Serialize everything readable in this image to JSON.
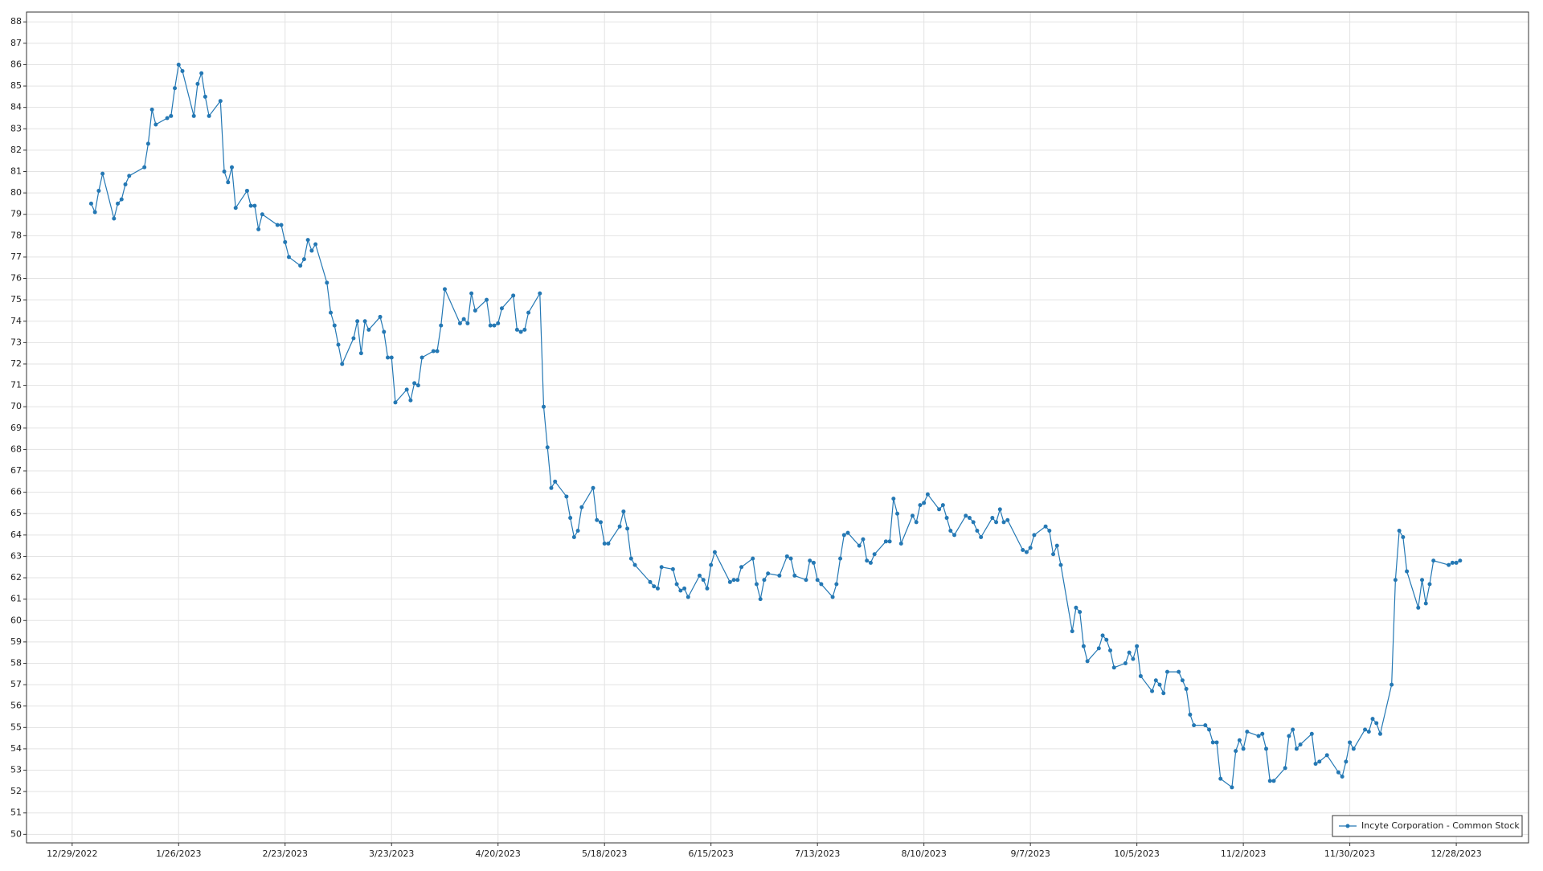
{
  "chart_data": {
    "type": "line",
    "x": [
      "1/3/2023",
      "1/4/2023",
      "1/5/2023",
      "1/6/2023",
      "1/9/2023",
      "1/10/2023",
      "1/11/2023",
      "1/12/2023",
      "1/13/2023",
      "1/17/2023",
      "1/18/2023",
      "1/19/2023",
      "1/20/2023",
      "1/23/2023",
      "1/24/2023",
      "1/25/2023",
      "1/26/2023",
      "1/27/2023",
      "1/30/2023",
      "1/31/2023",
      "2/1/2023",
      "2/2/2023",
      "2/3/2023",
      "2/6/2023",
      "2/7/2023",
      "2/8/2023",
      "2/9/2023",
      "2/10/2023",
      "2/13/2023",
      "2/14/2023",
      "2/15/2023",
      "2/16/2023",
      "2/17/2023",
      "2/21/2023",
      "2/22/2023",
      "2/23/2023",
      "2/24/2023",
      "2/27/2023",
      "2/28/2023",
      "3/1/2023",
      "3/2/2023",
      "3/3/2023",
      "3/6/2023",
      "3/7/2023",
      "3/8/2023",
      "3/9/2023",
      "3/10/2023",
      "3/13/2023",
      "3/14/2023",
      "3/15/2023",
      "3/16/2023",
      "3/17/2023",
      "3/20/2023",
      "3/21/2023",
      "3/22/2023",
      "3/23/2023",
      "3/24/2023",
      "3/27/2023",
      "3/28/2023",
      "3/29/2023",
      "3/30/2023",
      "3/31/2023",
      "4/3/2023",
      "4/4/2023",
      "4/5/2023",
      "4/6/2023",
      "4/10/2023",
      "4/11/2023",
      "4/12/2023",
      "4/13/2023",
      "4/14/2023",
      "4/17/2023",
      "4/18/2023",
      "4/19/2023",
      "4/20/2023",
      "4/21/2023",
      "4/24/2023",
      "4/25/2023",
      "4/26/2023",
      "4/27/2023",
      "4/28/2023",
      "5/1/2023",
      "5/2/2023",
      "5/3/2023",
      "5/4/2023",
      "5/5/2023",
      "5/8/2023",
      "5/9/2023",
      "5/10/2023",
      "5/11/2023",
      "5/12/2023",
      "5/15/2023",
      "5/16/2023",
      "5/17/2023",
      "5/18/2023",
      "5/19/2023",
      "5/22/2023",
      "5/23/2023",
      "5/24/2023",
      "5/25/2023",
      "5/26/2023",
      "5/30/2023",
      "5/31/2023",
      "6/1/2023",
      "6/2/2023",
      "6/5/2023",
      "6/6/2023",
      "6/7/2023",
      "6/8/2023",
      "6/9/2023",
      "6/12/2023",
      "6/13/2023",
      "6/14/2023",
      "6/15/2023",
      "6/16/2023",
      "6/20/2023",
      "6/21/2023",
      "6/22/2023",
      "6/23/2023",
      "6/26/2023",
      "6/27/2023",
      "6/28/2023",
      "6/29/2023",
      "6/30/2023",
      "7/3/2023",
      "7/5/2023",
      "7/6/2023",
      "7/7/2023",
      "7/10/2023",
      "7/11/2023",
      "7/12/2023",
      "7/13/2023",
      "7/14/2023",
      "7/17/2023",
      "7/18/2023",
      "7/19/2023",
      "7/20/2023",
      "7/21/2023",
      "7/24/2023",
      "7/25/2023",
      "7/26/2023",
      "7/27/2023",
      "7/28/2023",
      "7/31/2023",
      "8/1/2023",
      "8/2/2023",
      "8/3/2023",
      "8/4/2023",
      "8/7/2023",
      "8/8/2023",
      "8/9/2023",
      "8/10/2023",
      "8/11/2023",
      "8/14/2023",
      "8/15/2023",
      "8/16/2023",
      "8/17/2023",
      "8/18/2023",
      "8/21/2023",
      "8/22/2023",
      "8/23/2023",
      "8/24/2023",
      "8/25/2023",
      "8/28/2023",
      "8/29/2023",
      "8/30/2023",
      "8/31/2023",
      "9/1/2023",
      "9/5/2023",
      "9/6/2023",
      "9/7/2023",
      "9/8/2023",
      "9/11/2023",
      "9/12/2023",
      "9/13/2023",
      "9/14/2023",
      "9/15/2023",
      "9/18/2023",
      "9/19/2023",
      "9/20/2023",
      "9/21/2023",
      "9/22/2023",
      "9/25/2023",
      "9/26/2023",
      "9/27/2023",
      "9/28/2023",
      "9/29/2023",
      "10/2/2023",
      "10/3/2023",
      "10/4/2023",
      "10/5/2023",
      "10/6/2023",
      "10/9/2023",
      "10/10/2023",
      "10/11/2023",
      "10/12/2023",
      "10/13/2023",
      "10/16/2023",
      "10/17/2023",
      "10/18/2023",
      "10/19/2023",
      "10/20/2023",
      "10/23/2023",
      "10/24/2023",
      "10/25/2023",
      "10/26/2023",
      "10/27/2023",
      "10/30/2023",
      "10/31/2023",
      "11/1/2023",
      "11/2/2023",
      "11/3/2023",
      "11/6/2023",
      "11/7/2023",
      "11/8/2023",
      "11/9/2023",
      "11/10/2023",
      "11/13/2023",
      "11/14/2023",
      "11/15/2023",
      "11/16/2023",
      "11/17/2023",
      "11/20/2023",
      "11/21/2023",
      "11/22/2023",
      "11/24/2023",
      "11/27/2023",
      "11/28/2023",
      "11/29/2023",
      "11/30/2023",
      "12/1/2023",
      "12/4/2023",
      "12/5/2023",
      "12/6/2023",
      "12/7/2023",
      "12/8/2023",
      "12/11/2023",
      "12/12/2023",
      "12/13/2023",
      "12/14/2023",
      "12/15/2023",
      "12/18/2023",
      "12/19/2023",
      "12/20/2023",
      "12/21/2023",
      "12/22/2023",
      "12/26/2023",
      "12/27/2023",
      "12/28/2023",
      "12/29/2023"
    ],
    "series": [
      {
        "name": "Incyte Corporation - Common Stock",
        "color": "#2478b4",
        "values": [
          79.5,
          79.1,
          80.1,
          80.9,
          78.8,
          79.5,
          79.7,
          80.4,
          80.8,
          81.2,
          82.3,
          83.9,
          83.2,
          83.5,
          83.6,
          84.9,
          86.0,
          85.7,
          83.6,
          85.1,
          85.6,
          84.5,
          83.6,
          84.3,
          81.0,
          80.5,
          81.2,
          79.3,
          80.1,
          79.4,
          79.4,
          78.3,
          79.0,
          78.5,
          78.5,
          77.7,
          77.0,
          76.6,
          76.9,
          77.8,
          77.3,
          77.6,
          75.8,
          74.4,
          73.8,
          72.9,
          72.0,
          73.2,
          74.0,
          72.5,
          74.0,
          73.6,
          74.2,
          73.5,
          72.3,
          72.3,
          70.2,
          70.8,
          70.3,
          71.1,
          71.0,
          72.3,
          72.6,
          72.6,
          73.8,
          75.5,
          73.9,
          74.1,
          73.9,
          75.3,
          74.5,
          75.0,
          73.8,
          73.8,
          73.9,
          74.6,
          75.2,
          73.6,
          73.5,
          73.6,
          74.4,
          75.3,
          70.0,
          68.1,
          66.2,
          66.5,
          65.8,
          64.8,
          63.9,
          64.2,
          65.3,
          66.2,
          64.7,
          64.6,
          63.6,
          63.6,
          64.4,
          65.1,
          64.3,
          62.9,
          62.6,
          61.8,
          61.6,
          61.5,
          62.5,
          62.4,
          61.7,
          61.4,
          61.5,
          61.1,
          62.1,
          61.9,
          61.5,
          62.6,
          63.2,
          61.8,
          61.9,
          61.9,
          62.5,
          62.9,
          61.7,
          61.0,
          61.9,
          62.2,
          62.1,
          63.0,
          62.9,
          62.1,
          61.9,
          62.8,
          62.7,
          61.9,
          61.7,
          61.1,
          61.7,
          62.9,
          64.0,
          64.1,
          63.5,
          63.8,
          62.8,
          62.7,
          63.1,
          63.7,
          63.7,
          65.7,
          65.0,
          63.6,
          64.9,
          64.6,
          65.4,
          65.5,
          65.9,
          65.2,
          65.4,
          64.8,
          64.2,
          64.0,
          64.9,
          64.8,
          64.6,
          64.2,
          63.9,
          64.8,
          64.6,
          65.2,
          64.6,
          64.7,
          63.3,
          63.2,
          63.4,
          64.0,
          64.4,
          64.2,
          63.1,
          63.5,
          62.6,
          59.5,
          60.6,
          60.4,
          58.8,
          58.1,
          58.7,
          59.3,
          59.1,
          58.6,
          57.8,
          58.0,
          58.5,
          58.2,
          58.8,
          57.4,
          56.7,
          57.2,
          57.0,
          56.6,
          57.6,
          57.6,
          57.2,
          56.8,
          55.6,
          55.1,
          55.1,
          54.9,
          54.3,
          54.3,
          52.6,
          52.2,
          53.9,
          54.4,
          54.0,
          54.8,
          54.6,
          54.7,
          54.0,
          52.5,
          52.5,
          53.1,
          54.6,
          54.9,
          54.0,
          54.2,
          54.7,
          53.3,
          53.4,
          53.7,
          52.9,
          52.7,
          53.4,
          54.3,
          54.0,
          54.9,
          54.8,
          55.4,
          55.2,
          54.7,
          57.0,
          61.9,
          64.2,
          63.9,
          62.3,
          60.6,
          61.9,
          60.8,
          61.7,
          62.8,
          62.6,
          62.7,
          62.7,
          62.8
        ]
      }
    ],
    "xlim": [
      "12/17/2022",
      "1/16/2024"
    ],
    "xticks": [
      "12/29/2022",
      "1/26/2023",
      "2/23/2023",
      "3/23/2023",
      "4/20/2023",
      "5/18/2023",
      "6/15/2023",
      "7/13/2023",
      "8/10/2023",
      "9/7/2023",
      "10/5/2023",
      "11/2/2023",
      "11/30/2023",
      "12/28/2023"
    ],
    "ylim": [
      49.6,
      88.46
    ],
    "yticks": [
      50,
      51,
      52,
      53,
      54,
      55,
      56,
      57,
      58,
      59,
      60,
      61,
      62,
      63,
      64,
      65,
      66,
      67,
      68,
      69,
      70,
      71,
      72,
      73,
      74,
      75,
      76,
      77,
      78,
      79,
      80,
      81,
      82,
      83,
      84,
      85,
      86,
      87,
      88
    ],
    "grid": true,
    "legend": "lower right"
  }
}
